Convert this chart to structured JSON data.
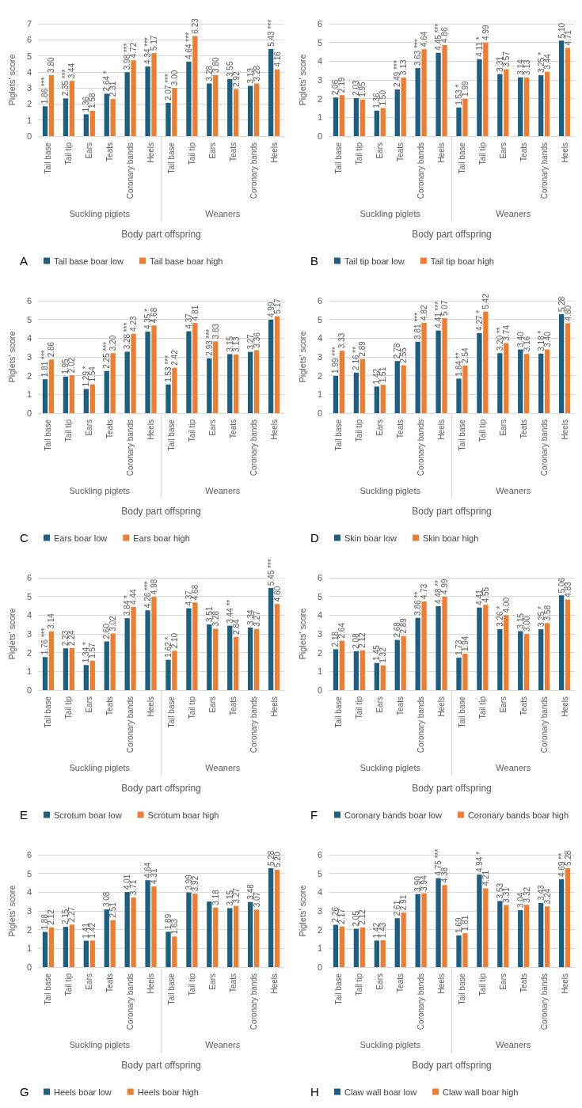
{
  "chart_data": [
    {
      "type": "bar",
      "title": "A",
      "xlabel": "Body part offspring",
      "ylabel": "Piglets' score",
      "categories": [
        "Tail base",
        "Tail tip",
        "Ears",
        "Teats",
        "Coronary bands",
        "Heels",
        "Tail base",
        "Tail tip",
        "Ears",
        "Teats",
        "Coronary bands",
        "Heels"
      ],
      "annotations": [
        "Suckling piglets",
        "Weaners"
      ],
      "ylim": [
        0,
        7
      ],
      "yticks": [
        0,
        1,
        2,
        3,
        4,
        5,
        6,
        7
      ],
      "grid": "y",
      "legend": "bottom",
      "series": [
        {
          "name": "Tail base boar low",
          "color": "#1c5f80",
          "values": [
            1.86,
            2.35,
            1.36,
            2.64,
            3.98,
            4.34,
            2.07,
            4.64,
            3.28,
            3.55,
            3.13,
            5.43
          ],
          "value_labels": [
            "1.86 ***",
            "2.35 ***",
            "1.36",
            "2.64 *",
            "3.98 ***",
            "4.34 ***",
            "2.07 ***",
            "4.64 ***",
            "3.28",
            "3.55",
            "3.13",
            "5.43 ***"
          ]
        },
        {
          "name": "Tail base boar high",
          "color": "#ed7d31",
          "values": [
            3.8,
            3.44,
            1.58,
            2.31,
            4.72,
            5.17,
            3.0,
            6.23,
            3.8,
            2.92,
            3.28,
            4.16
          ],
          "value_labels": [
            "3.80",
            "3.44",
            "1.58",
            "2.31",
            "4.72",
            "5.17",
            "3.00",
            "6.23",
            "3.80",
            "2.92",
            "3.28",
            "4.16"
          ]
        }
      ]
    },
    {
      "type": "bar",
      "title": "B",
      "xlabel": "Body part offspring",
      "ylabel": "Piglets' score",
      "categories": [
        "Tail base",
        "Tail tip",
        "Ears",
        "Teats",
        "Coronary bands",
        "Heels",
        "Tail base",
        "Tail tip",
        "Ears",
        "Teats",
        "Coronary bands",
        "Heels"
      ],
      "annotations": [
        "Suckling piglets",
        "Weaners"
      ],
      "ylim": [
        0,
        6
      ],
      "yticks": [
        0,
        1,
        2,
        3,
        4,
        5,
        6
      ],
      "grid": "y",
      "legend": "bottom",
      "series": [
        {
          "name": "Tail tip boar low",
          "color": "#1c5f80",
          "values": [
            2.06,
            2.03,
            1.36,
            2.49,
            3.63,
            4.45,
            1.53,
            4.11,
            3.31,
            3.14,
            3.25,
            5.1
          ],
          "value_labels": [
            "2.06",
            "2.03",
            "1.36",
            "2.49 ***",
            "3.63 ***",
            "4.45 ***",
            "1.53 *",
            "4.11 *",
            "3.31",
            "3.14",
            "3.25 *",
            "5.10"
          ]
        },
        {
          "name": "Tail tip boar high",
          "color": "#ed7d31",
          "values": [
            2.19,
            1.95,
            1.5,
            3.13,
            4.64,
            4.86,
            1.99,
            4.99,
            3.57,
            3.13,
            3.44,
            4.71
          ],
          "value_labels": [
            "2.19",
            "1.95",
            "1.50",
            "3.13",
            "4.64",
            "4.86",
            "1.99",
            "4.99",
            "3.57",
            "3.13",
            "3.44",
            "4.71"
          ]
        }
      ]
    },
    {
      "type": "bar",
      "title": "C",
      "xlabel": "Body part offspring",
      "ylabel": "Piglets' score",
      "categories": [
        "Tail base",
        "Tail tip",
        "Ears",
        "Teats",
        "Coronary bands",
        "Heels",
        "Tail base",
        "Tail tip",
        "Ears",
        "Teats",
        "Coronary bands",
        "Heels"
      ],
      "annotations": [
        "Suckling piglets",
        "Weaners"
      ],
      "ylim": [
        0,
        6
      ],
      "yticks": [
        0,
        1,
        2,
        3,
        4,
        5,
        6
      ],
      "grid": "y",
      "legend": "bottom",
      "series": [
        {
          "name": "Ears boar low",
          "color": "#1c5f80",
          "values": [
            1.81,
            1.95,
            1.29,
            2.25,
            3.28,
            4.35,
            1.53,
            4.37,
            2.93,
            3.15,
            3.27,
            4.99
          ],
          "value_labels": [
            "1.81 ***",
            "1.95",
            "1.29 *",
            "2.25 ***",
            "3.28 ***",
            "4.35 *",
            "1.53 ***",
            "4.37",
            "2.93 ***",
            "3.15",
            "3.27",
            "4.99"
          ]
        },
        {
          "name": "Ears boar high",
          "color": "#ed7d31",
          "values": [
            2.86,
            2.02,
            1.54,
            3.2,
            4.23,
            4.68,
            2.42,
            4.81,
            3.83,
            3.13,
            3.36,
            5.17
          ],
          "value_labels": [
            "2.86",
            "2.02",
            "1.54",
            "3.20",
            "4.23",
            "4.68",
            "2.42",
            "4.81",
            "3.83",
            "3.13",
            "3.36",
            "5.17"
          ]
        }
      ]
    },
    {
      "type": "bar",
      "title": "D",
      "xlabel": "Body part offspring",
      "ylabel": "Piglets' score",
      "categories": [
        "Tail base",
        "Tail tip",
        "Ears",
        "Teats",
        "Coronary bands",
        "Heels",
        "Tail base",
        "Tail tip",
        "Ears",
        "Teats",
        "Coronary bands",
        "Heels"
      ],
      "annotations": [
        "Suckling piglets",
        "Weaners"
      ],
      "ylim": [
        0,
        6
      ],
      "yticks": [
        0,
        1,
        2,
        3,
        4,
        5,
        6
      ],
      "grid": "y",
      "legend": "bottom",
      "series": [
        {
          "name": "Skin boar low",
          "color": "#1c5f80",
          "values": [
            1.99,
            2.16,
            1.42,
            2.78,
            3.81,
            4.41,
            1.84,
            4.27,
            3.2,
            3.4,
            3.18,
            5.28
          ],
          "value_labels": [
            "1.99 ***",
            "2.16 **",
            "1.42",
            "2.78",
            "3.81 ***",
            "4.41 ***",
            "1.84 **",
            "4.27 *",
            "3.20 **",
            "3.40",
            "3.18 *",
            "5.28"
          ]
        },
        {
          "name": "Skin boar high",
          "color": "#ed7d31",
          "values": [
            3.33,
            2.89,
            1.51,
            2.55,
            4.82,
            5.07,
            2.54,
            5.42,
            3.74,
            3.16,
            3.4,
            4.8
          ],
          "value_labels": [
            "3.33",
            "2.89",
            "1.51",
            "2.55",
            "4.82",
            "5.07",
            "2.54",
            "5.42",
            "3.74",
            "3.16",
            "3.40",
            "4.80"
          ]
        }
      ]
    },
    {
      "type": "bar",
      "title": "E",
      "xlabel": "Body part offspring",
      "ylabel": "Piglets' score",
      "categories": [
        "Tail base",
        "Tail tip",
        "Ears",
        "Teats",
        "Coronary bands",
        "Heels",
        "Tail base",
        "Tail tip",
        "Ears",
        "Teats",
        "Coronary bands",
        "Heels"
      ],
      "annotations": [
        "Suckling piglets",
        "Weaners"
      ],
      "ylim": [
        0,
        6
      ],
      "yticks": [
        0,
        1,
        2,
        3,
        4,
        5,
        6
      ],
      "grid": "y",
      "legend": "bottom",
      "series": [
        {
          "name": "Scrotum boar low",
          "color": "#1c5f80",
          "values": [
            1.76,
            2.23,
            1.34,
            2.6,
            3.84,
            4.26,
            1.62,
            4.37,
            3.51,
            3.44,
            3.34,
            5.45
          ],
          "value_labels": [
            "1.76 ***",
            "2.23",
            "1.34 *",
            "2.60",
            "3.84 *",
            "4.26 ***",
            "1.62 *",
            "4.37",
            "3.51",
            "3.44 **",
            "3.34",
            "5.45 ***"
          ]
        },
        {
          "name": "Scrotum boar high",
          "color": "#ed7d31",
          "values": [
            3.14,
            2.24,
            1.57,
            3.02,
            4.44,
            4.98,
            2.1,
            4.68,
            3.28,
            2.84,
            3.27,
            4.6
          ],
          "value_labels": [
            "3.14",
            "2.24",
            "1.57",
            "3.02",
            "4.44",
            "4.98",
            "2.10",
            "4.68",
            "3.28",
            "2.84",
            "3.27",
            "4.60"
          ]
        }
      ]
    },
    {
      "type": "bar",
      "title": "F",
      "xlabel": "Body part offspring",
      "ylabel": "Piglets' score",
      "categories": [
        "Tail base",
        "Tail tip",
        "Ears",
        "Teats",
        "Coronary bands",
        "Heels",
        "Tail base",
        "Tail tip",
        "Ears",
        "Teats",
        "Coronary bands",
        "Heels"
      ],
      "annotations": [
        "Suckling piglets",
        "Weaners"
      ],
      "ylim": [
        0,
        6
      ],
      "yticks": [
        0,
        1,
        2,
        3,
        4,
        5,
        6
      ],
      "grid": "y",
      "legend": "bottom",
      "series": [
        {
          "name": "Coronary bands boar low",
          "color": "#1c5f80",
          "values": [
            2.18,
            2.08,
            1.45,
            2.68,
            3.86,
            4.48,
            1.73,
            4.41,
            3.26,
            3.15,
            3.25,
            5.06
          ],
          "value_labels": [
            "2.18",
            "2.08",
            "1.45",
            "2.68",
            "3.86 **",
            "4.48 **",
            "1.73",
            "4.41",
            "3.26 *",
            "3.15",
            "3.25 *",
            "5.06"
          ]
        },
        {
          "name": "Coronary bands boar high",
          "color": "#ed7d31",
          "values": [
            2.64,
            2.12,
            1.32,
            2.89,
            4.73,
            4.99,
            1.94,
            4.55,
            4.0,
            3.0,
            3.58,
            4.83
          ],
          "value_labels": [
            "2.64",
            "2.12",
            "1.32",
            "2.89",
            "4.73",
            "4.99",
            "1.94",
            "4.55",
            "4.00",
            "3.00",
            "3.58",
            "4.83"
          ]
        }
      ]
    },
    {
      "type": "bar",
      "title": "G",
      "xlabel": "Body part offspring",
      "ylabel": "Piglets' score",
      "categories": [
        "Tail base",
        "Tail tip",
        "Ears",
        "Teats",
        "Coronary bands",
        "Heels",
        "Tail base",
        "Tail tip",
        "Ears",
        "Teats",
        "Coronary bands",
        "Heels"
      ],
      "annotations": [
        "Suckling piglets",
        "Weaners"
      ],
      "ylim": [
        0,
        6
      ],
      "yticks": [
        0,
        1,
        2,
        3,
        4,
        5,
        6
      ],
      "grid": "y",
      "legend": "bottom",
      "series": [
        {
          "name": "Heels boar low",
          "color": "#1c5f80",
          "values": [
            1.88,
            2.15,
            1.41,
            3.08,
            4.01,
            4.64,
            1.89,
            3.99,
            3.5,
            3.15,
            3.48,
            5.28
          ],
          "value_labels": [
            "1.88",
            "2.15",
            "1.41",
            "3.08",
            "4.01",
            "4.64",
            "1.89",
            "3.99",
            null,
            "3.15",
            "3.48",
            "5.28"
          ]
        },
        {
          "name": "Heels boar high",
          "color": "#ed7d31",
          "values": [
            2.12,
            2.27,
            1.42,
            2.51,
            3.71,
            4.31,
            1.63,
            3.92,
            3.18,
            3.27,
            3.07,
            5.2
          ],
          "value_labels": [
            "2.12",
            "2.27",
            "1.42",
            "2.51",
            "3.71",
            "4.31",
            "1.63",
            "3.92",
            "3.18",
            "3.27",
            "3.07",
            "5.20"
          ]
        }
      ]
    },
    {
      "type": "bar",
      "title": "H",
      "xlabel": "Body part offspring",
      "ylabel": "Piglets' score",
      "categories": [
        "Tail base",
        "Tail tip",
        "Ears",
        "Teats",
        "Coronary bands",
        "Heels",
        "Tail base",
        "Tail tip",
        "Ears",
        "Teats",
        "Coronary bands",
        "Heels"
      ],
      "annotations": [
        "Suckling piglets",
        "Weaners"
      ],
      "ylim": [
        0,
        6
      ],
      "yticks": [
        0,
        1,
        2,
        3,
        4,
        5,
        6
      ],
      "grid": "y",
      "legend": "bottom",
      "series": [
        {
          "name": "Claw wall boar low",
          "color": "#1c5f80",
          "values": [
            2.26,
            2.05,
            1.42,
            2.61,
            3.9,
            4.75,
            1.69,
            4.94,
            3.53,
            3.04,
            3.43,
            4.69
          ],
          "value_labels": [
            "2.26",
            "2.05",
            "1.42",
            "2.61",
            "3.90",
            "4.75 ***",
            "1.69",
            "4.94 *",
            "3.53",
            "3.04",
            "3.43",
            "4.69 **"
          ]
        },
        {
          "name": "Claw wall boar high",
          "color": "#ed7d31",
          "values": [
            2.17,
            2.12,
            1.43,
            2.91,
            3.94,
            4.38,
            1.81,
            4.21,
            3.31,
            3.32,
            3.24,
            5.28
          ],
          "value_labels": [
            "2.17",
            "2.12",
            "1.43",
            "2.91",
            "3.94",
            "4.38",
            "1.81",
            "4.21",
            "3.31",
            "3.32",
            "3.24",
            "5.28"
          ]
        }
      ]
    }
  ]
}
